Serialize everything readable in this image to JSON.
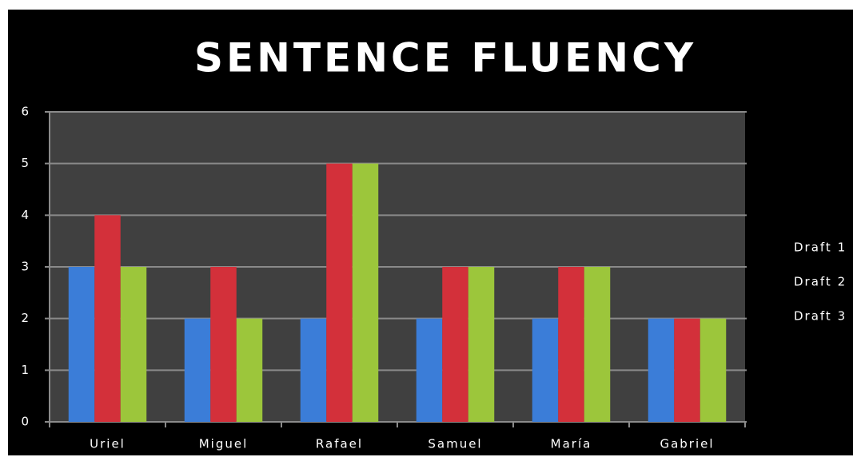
{
  "chart_data": {
    "type": "bar",
    "title": "SENTENCE FLUENCY",
    "categories": [
      "Uriel",
      "Miguel",
      "Rafael",
      "Samuel",
      "María",
      "Gabriel"
    ],
    "series": [
      {
        "name": "Draft 1",
        "color": "#3b7dd8",
        "values": [
          3,
          2,
          2,
          2,
          2,
          2
        ]
      },
      {
        "name": "Draft 2",
        "color": "#d3303a",
        "values": [
          4,
          3,
          5,
          3,
          3,
          2
        ]
      },
      {
        "name": "Draft 3",
        "color": "#9cc63b",
        "values": [
          3,
          2,
          5,
          3,
          3,
          2
        ]
      }
    ],
    "ylim": [
      0,
      6
    ],
    "yticks": [
      0,
      1,
      2,
      3,
      4,
      5,
      6
    ],
    "grid": true,
    "legend": "right"
  }
}
